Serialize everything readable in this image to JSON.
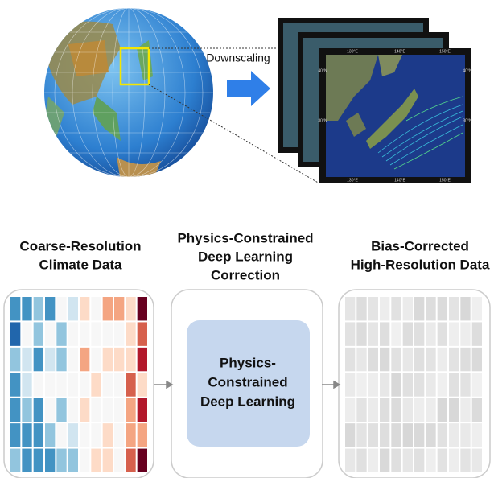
{
  "top": {
    "label": "Downscaling",
    "map_labels": {
      "top": [
        "130°E",
        "140°E",
        "150°E"
      ],
      "bottom": [
        "130°E",
        "140°E",
        "150°E"
      ],
      "left": [
        "40°N",
        "30°N"
      ],
      "right": [
        "40°N",
        "30°N"
      ]
    }
  },
  "panels": [
    {
      "title": [
        "Coarse-Resolution",
        "Climate Data"
      ]
    },
    {
      "title": [
        "Physics-Constrained",
        "Deep Learning",
        "Correction"
      ],
      "box": [
        "Physics-",
        "Constrained",
        "Deep Learning"
      ]
    },
    {
      "title": [
        "Bias-Corrected",
        "High-Resolution Data"
      ]
    }
  ]
}
